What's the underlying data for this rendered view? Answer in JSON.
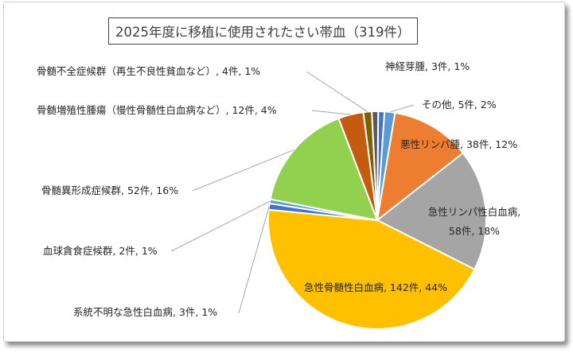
{
  "chart_data": {
    "type": "pie",
    "title": "2025年度に移植に使用されたさい帯血（319件）",
    "total": 319,
    "slices": [
      {
        "name": "神経芽腫",
        "count": 3,
        "percent": 1,
        "color": "#4472C4",
        "label_lines": [
          "神経芽腫, 3件, 1%"
        ]
      },
      {
        "name": "その他",
        "count": 5,
        "percent": 2,
        "color": "#5B9BD5",
        "label_lines": [
          "その他, 5件, 2%"
        ]
      },
      {
        "name": "悪性リンパ腫",
        "count": 38,
        "percent": 12,
        "color": "#ED7D31",
        "label_lines": [
          "悪性リンパ腫, 38件, 12%"
        ]
      },
      {
        "name": "急性リンパ性白血病",
        "count": 58,
        "percent": 18,
        "color": "#A5A5A5",
        "label_lines": [
          "急性リンパ性白血病,",
          "58件, 18%"
        ]
      },
      {
        "name": "急性骨髄性白血病",
        "count": 142,
        "percent": 44,
        "color": "#FFC000",
        "label_lines": [
          "急性骨髄性白血病, 142件, 44%"
        ]
      },
      {
        "name": "系統不明な急性白血病",
        "count": 3,
        "percent": 1,
        "color": "#4472C4",
        "label_lines": [
          "系統不明な急性白血病, 3件, 1%"
        ]
      },
      {
        "name": "血球貪食症候群",
        "count": 2,
        "percent": 1,
        "color": "#5B9BD5",
        "label_lines": [
          "血球貪食症候群, 2件, 1%"
        ]
      },
      {
        "name": "骨髄異形成症候群",
        "count": 52,
        "percent": 16,
        "color": "#92D050",
        "label_lines": [
          "骨髄異形成症候群, 52件, 16%"
        ]
      },
      {
        "name": "骨髄増殖性腫瘍（慢性骨髄性白血病など）",
        "count": 12,
        "percent": 4,
        "color": "#C55A11",
        "label_lines": [
          "骨髄増殖性腫瘍（慢性骨髄性白血病など）, 12件, 4%"
        ]
      },
      {
        "name": "骨髄不全症候群（再生不良性貧血など）",
        "count": 4,
        "percent": 1,
        "color": "#7F6000",
        "label_lines": [
          "骨髄不全症候群（再生不良性貧血など）, 4件, 1%"
        ]
      },
      {
        "name": "骨髄不全症候群 (unlabeled slice)",
        "count": 0,
        "percent": 0,
        "color": "#595959",
        "label_lines": []
      }
    ]
  }
}
